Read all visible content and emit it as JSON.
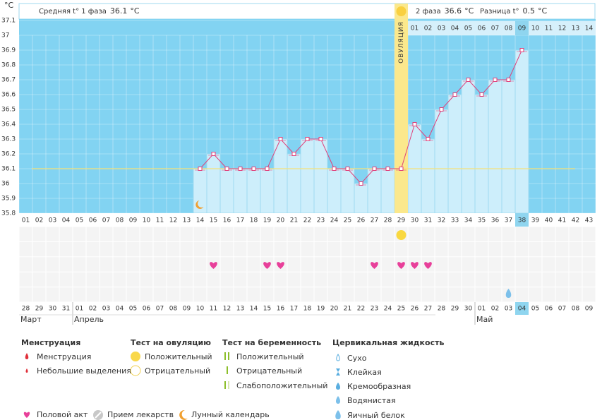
{
  "header": {
    "phase1_label": "Средняя t° 1 фаза",
    "phase1_value": 36.1,
    "unit": "°C",
    "phase2_label": "2 фаза",
    "phase2_value": 36.6,
    "diff_label": "Разница t°",
    "diff_value": 0.5
  },
  "chart_data": {
    "type": "line",
    "y_unit": "°C",
    "color": "#e0407a",
    "ylim": [
      35.8,
      37.1
    ],
    "yticks": [
      35.8,
      35.9,
      36,
      36.1,
      36.2,
      36.3,
      36.4,
      36.5,
      36.6,
      36.7,
      36.8,
      36.9,
      37,
      37.1
    ],
    "categories": [
      "01",
      "02",
      "03",
      "04",
      "05",
      "06",
      "07",
      "08",
      "09",
      "10",
      "11",
      "12",
      "13",
      "14",
      "15",
      "16",
      "17",
      "18",
      "19",
      "20",
      "21",
      "22",
      "23",
      "24",
      "25",
      "26",
      "27",
      "28",
      "29",
      "30",
      "31",
      "32",
      "33",
      "34",
      "35",
      "36",
      "37",
      "38",
      "39",
      "40",
      "41",
      "42",
      "43"
    ],
    "values": [
      null,
      null,
      null,
      null,
      null,
      null,
      null,
      null,
      null,
      null,
      null,
      null,
      null,
      36.1,
      36.2,
      36.1,
      36.1,
      36.1,
      36.1,
      36.3,
      36.2,
      36.3,
      36.3,
      36.1,
      36.1,
      36.0,
      36.1,
      36.1,
      36.1,
      36.4,
      36.3,
      36.5,
      36.6,
      36.7,
      36.6,
      36.7,
      36.7,
      36.9,
      null,
      null,
      null,
      null,
      null
    ],
    "coverline": 36.1,
    "ovulation_day": "29",
    "ovulation_label": "ОВУЛЯЦИЯ",
    "current_day": "38",
    "lunar_days": [
      "14"
    ]
  },
  "phase2_days": [
    "01",
    "02",
    "03",
    "04",
    "05",
    "06",
    "07",
    "08",
    "09",
    "10",
    "11",
    "12",
    "13",
    "14"
  ],
  "ovulation_test_positive_days": [
    "29"
  ],
  "intercourse_days": [
    "15",
    "19",
    "20",
    "27",
    "29",
    "30",
    "31"
  ],
  "watery_fluid_days": [
    "37"
  ],
  "dates": [
    "28",
    "29",
    "30",
    "31",
    "01",
    "02",
    "03",
    "04",
    "05",
    "06",
    "07",
    "08",
    "09",
    "10",
    "11",
    "12",
    "13",
    "14",
    "15",
    "16",
    "17",
    "18",
    "19",
    "20",
    "21",
    "22",
    "23",
    "24",
    "25",
    "26",
    "27",
    "28",
    "29",
    "30",
    "01",
    "02",
    "03",
    "04",
    "05",
    "06",
    "07",
    "08",
    "09"
  ],
  "weekend": [
    true,
    false,
    false,
    false,
    false,
    false,
    true,
    true,
    false,
    false,
    false,
    false,
    false,
    true,
    true,
    false,
    false,
    false,
    false,
    false,
    true,
    true,
    false,
    false,
    false,
    false,
    false,
    true,
    true,
    false,
    false,
    false,
    false,
    false,
    true,
    true,
    false,
    false,
    false,
    false,
    false,
    true,
    true
  ],
  "months": [
    "Март",
    "Апрель",
    "Май"
  ],
  "legend": {
    "menstruation": {
      "title": "Менструация",
      "items": [
        "Менструация",
        "Небольшие выделения"
      ]
    },
    "ovulation_test": {
      "title": "Тест на овуляцию",
      "items": [
        "Положительный",
        "Отрицательный"
      ]
    },
    "pregnancy_test": {
      "title": "Тест на беременность",
      "items": [
        "Положительный",
        "Отрицательный",
        "Слабоположительный"
      ]
    },
    "cervical_fluid": {
      "title": "Цервикальная жидкость",
      "items": [
        "Сухо",
        "Клейкая",
        "Кремообразная",
        "Водянистая",
        "Яичный белок"
      ]
    },
    "other": [
      "Половой акт",
      "Прием лекарств",
      "Лунный календарь"
    ]
  }
}
